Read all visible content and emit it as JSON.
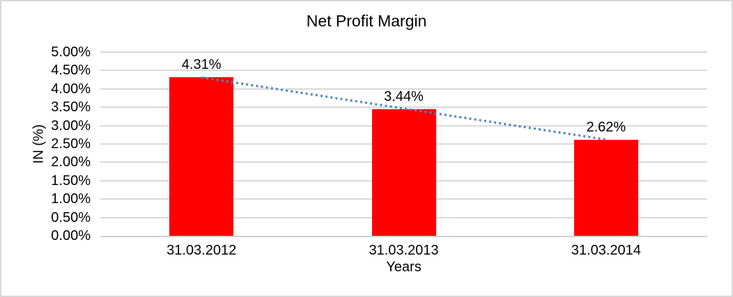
{
  "chart_data": {
    "type": "bar",
    "title": "Net Profit Margin",
    "xlabel": "Years",
    "ylabel": "IN (%)",
    "categories": [
      "31.03.2012",
      "31.03.2013",
      "31.03.2014"
    ],
    "values": [
      4.31,
      3.44,
      2.62
    ],
    "data_labels": [
      "4.31%",
      "3.44%",
      "2.62%"
    ],
    "ylim": [
      0,
      5
    ],
    "yticks": [
      {
        "value": 0,
        "label": "0.00%"
      },
      {
        "value": 0.5,
        "label": "0.50%"
      },
      {
        "value": 1,
        "label": "1.00%"
      },
      {
        "value": 1.5,
        "label": "1.50%"
      },
      {
        "value": 2,
        "label": "2.00%"
      },
      {
        "value": 2.5,
        "label": "2.50%"
      },
      {
        "value": 3,
        "label": "3.00%"
      },
      {
        "value": 3.5,
        "label": "3.50%"
      },
      {
        "value": 4,
        "label": "4.00%"
      },
      {
        "value": 4.5,
        "label": "4.50%"
      },
      {
        "value": 5,
        "label": "5.00%"
      }
    ],
    "grid": true,
    "legend_position": "none",
    "bar_color": "#FF0000",
    "trendline": {
      "type": "linear",
      "style": "dotted",
      "color": "#4E86C4"
    },
    "colors": {
      "gridline": "#D9D9D9",
      "axis_line": "#D0D0D0",
      "text": "#000000",
      "background": "#FFFFFF",
      "border": "#D9D9D9"
    }
  }
}
